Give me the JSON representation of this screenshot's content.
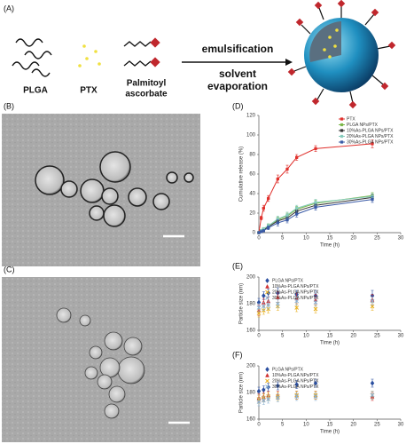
{
  "schematic": {
    "label": "(A)",
    "materials": [
      "PLGA",
      "PTX"
    ],
    "palmitoyl": [
      "Palmitoyl",
      "ascorbate"
    ],
    "process_top": "emulsification",
    "process_bottom": [
      "solvent",
      "evaporation"
    ]
  },
  "images": [
    {
      "label": "(B)"
    },
    {
      "label": "(C)"
    }
  ],
  "chart_data": [
    {
      "type": "line",
      "panel": "(D)",
      "xlabel": "Time (h)",
      "ylabel": "Cumulative release (%)",
      "x": [
        0,
        0.5,
        1,
        2,
        4,
        6,
        8,
        12,
        24
      ],
      "xlim": [
        0,
        30
      ],
      "xticks": [
        0,
        5,
        10,
        15,
        20,
        25,
        30
      ],
      "ylim": [
        0,
        120
      ],
      "yticks": [
        0,
        20,
        40,
        60,
        80,
        100,
        120
      ],
      "legend": "upper right",
      "series": [
        {
          "name": "PTX",
          "color": "#e0302c",
          "marker": "square",
          "values": [
            0,
            15,
            25,
            35,
            55,
            65,
            77,
            86,
            91
          ],
          "errors": [
            0,
            2,
            3,
            3,
            4,
            4,
            3,
            3,
            4
          ]
        },
        {
          "name": "PLGA NPs/PTX",
          "color": "#7ab648",
          "marker": "square",
          "values": [
            0,
            2,
            4,
            7,
            13,
            17,
            24,
            30,
            38
          ],
          "errors": [
            0,
            1,
            1,
            2,
            3,
            3,
            3,
            3,
            3
          ]
        },
        {
          "name": "10%As-PLGA NPs/PTX",
          "color": "#333333",
          "marker": "square",
          "values": [
            0,
            2,
            3,
            6,
            12,
            15,
            22,
            28,
            36
          ],
          "errors": [
            0,
            1,
            1,
            2,
            3,
            3,
            3,
            3,
            3
          ]
        },
        {
          "name": "20%As-PLGA NPs/PTX",
          "color": "#86cbbb",
          "marker": "square",
          "values": [
            0,
            2,
            4,
            7,
            14,
            18,
            25,
            31,
            37
          ],
          "errors": [
            0,
            1,
            1,
            2,
            3,
            3,
            3,
            3,
            3
          ]
        },
        {
          "name": "30%As-PLGA NPs/PTX",
          "color": "#3a5aa6",
          "marker": "square",
          "values": [
            0,
            1,
            2,
            5,
            10,
            13,
            19,
            26,
            34
          ],
          "errors": [
            0,
            1,
            1,
            2,
            3,
            3,
            3,
            3,
            3
          ]
        }
      ]
    },
    {
      "type": "scatter",
      "panel": "(E)",
      "xlabel": "Time (h)",
      "ylabel": "Particle size (nm)",
      "x": [
        0,
        1,
        2,
        4,
        8,
        12,
        24
      ],
      "xlim": [
        0,
        30
      ],
      "xticks": [
        0,
        5,
        10,
        15,
        20,
        25,
        30
      ],
      "ylim": [
        160,
        200
      ],
      "yticks": [
        160,
        180,
        200
      ],
      "legend": "upper left",
      "series": [
        {
          "name": "PLGA NPs/PTX",
          "color": "#2a4ea0",
          "marker": "diamond",
          "values": [
            181,
            186,
            188,
            188,
            187,
            186,
            186
          ],
          "errors": [
            3,
            3,
            3,
            4,
            3,
            4,
            4
          ]
        },
        {
          "name": "10%As-PLGA NPs/PTX",
          "color": "#d03030",
          "marker": "triangle",
          "values": [
            175,
            181,
            182,
            185,
            184,
            183,
            183
          ],
          "errors": [
            4,
            3,
            3,
            4,
            4,
            4,
            4
          ]
        },
        {
          "name": "20%As-PLGA NPs/PTX",
          "color": "#e8b020",
          "marker": "x",
          "values": [
            173,
            175,
            176,
            178,
            177,
            176,
            178
          ],
          "errors": [
            3,
            3,
            3,
            3,
            3,
            3,
            3
          ]
        },
        {
          "name": "30%As-PLGA NPs/PTX",
          "color": "#8ab0d0",
          "marker": "x",
          "values": [
            177,
            178,
            179,
            180,
            182,
            181,
            182
          ],
          "errors": [
            3,
            3,
            3,
            3,
            3,
            3,
            3
          ]
        }
      ]
    },
    {
      "type": "scatter",
      "panel": "(F)",
      "xlabel": "Time (h)",
      "ylabel": "Particle size (nm)",
      "x": [
        0,
        1,
        2,
        4,
        8,
        12,
        24
      ],
      "xlim": [
        0,
        30
      ],
      "xticks": [
        0,
        5,
        10,
        15,
        20,
        25,
        30
      ],
      "ylim": [
        160,
        200
      ],
      "yticks": [
        160,
        180,
        200
      ],
      "legend": "upper left",
      "series": [
        {
          "name": "PLGA NPs/PTX",
          "color": "#2a4ea0",
          "marker": "diamond",
          "values": [
            181,
            182,
            184,
            185,
            186,
            187,
            187
          ],
          "errors": [
            3,
            3,
            3,
            3,
            3,
            3,
            3
          ]
        },
        {
          "name": "10%As-PLGA NPs/PTX",
          "color": "#d03030",
          "marker": "triangle",
          "values": [
            176,
            177,
            178,
            178,
            178,
            178,
            177
          ],
          "errors": [
            3,
            3,
            3,
            3,
            3,
            3,
            3
          ]
        },
        {
          "name": "20%As-PLGA NPs/PTX",
          "color": "#e8b020",
          "marker": "x",
          "values": [
            175,
            176,
            177,
            177,
            178,
            178,
            178
          ],
          "errors": [
            3,
            3,
            3,
            3,
            3,
            3,
            3
          ]
        },
        {
          "name": "30%As-PLGA NPs/PTX",
          "color": "#8ab0d0",
          "marker": "x",
          "values": [
            173,
            174,
            175,
            176,
            177,
            177,
            178
          ],
          "errors": [
            3,
            3,
            3,
            3,
            3,
            3,
            3
          ]
        }
      ]
    }
  ]
}
